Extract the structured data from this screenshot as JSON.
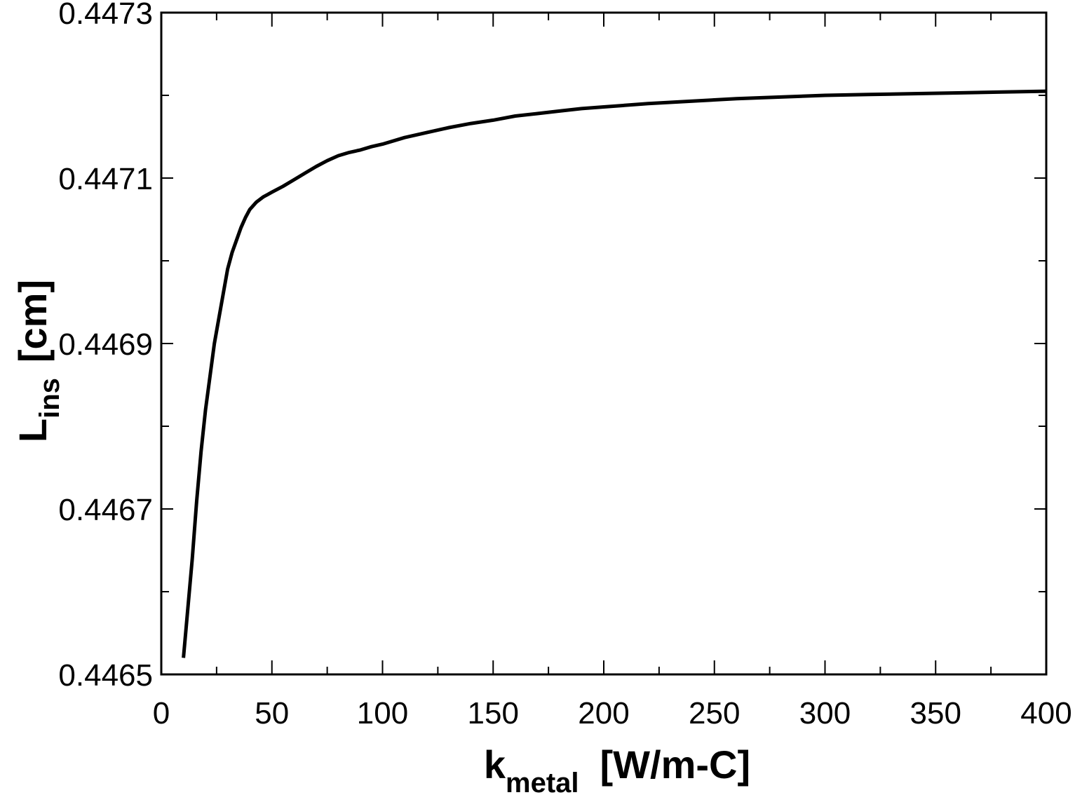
{
  "chart_data": {
    "type": "line",
    "title": "",
    "xlabel": {
      "main": "k",
      "sub": "metal",
      "unit": "[W/m-C]"
    },
    "ylabel": {
      "main": "L",
      "sub": "ins",
      "unit": "[cm]"
    },
    "xlim": [
      0,
      400
    ],
    "ylim": [
      0.4465,
      0.4473
    ],
    "x_ticks": [
      0,
      50,
      100,
      150,
      200,
      250,
      300,
      350,
      400
    ],
    "x_tick_labels": [
      "0",
      "50",
      "100",
      "150",
      "200",
      "250",
      "300",
      "350",
      "400"
    ],
    "y_ticks": [
      0.4465,
      0.4467,
      0.4469,
      0.4471,
      0.4473
    ],
    "y_tick_labels": [
      "0.4465",
      "0.4467",
      "0.4469",
      "0.4471",
      "0.4473"
    ],
    "x_minor_step": 25,
    "y_minor_step": 0.0001,
    "grid": false,
    "legend": "none",
    "line_color": "#000000",
    "series": [
      {
        "x": [
          10,
          12,
          14,
          16,
          18,
          20,
          22,
          24,
          26,
          28,
          30,
          32,
          34,
          36,
          38,
          40,
          43,
          46,
          50,
          55,
          60,
          65,
          70,
          75,
          80,
          85,
          90,
          95,
          100,
          110,
          120,
          130,
          140,
          150,
          160,
          170,
          180,
          190,
          200,
          220,
          240,
          260,
          280,
          300,
          320,
          340,
          360,
          380,
          400
        ],
        "values": [
          0.44652,
          0.44658,
          0.44664,
          0.44671,
          0.44677,
          0.44682,
          0.44686,
          0.4469,
          0.44693,
          0.44696,
          0.44699,
          0.44701,
          0.447025,
          0.44704,
          0.447052,
          0.447062,
          0.447071,
          0.447077,
          0.447083,
          0.44709,
          0.447098,
          0.447106,
          0.447114,
          0.447121,
          0.447127,
          0.447131,
          0.447134,
          0.447138,
          0.447141,
          0.447149,
          0.447155,
          0.447161,
          0.447166,
          0.44717,
          0.447175,
          0.447178,
          0.447181,
          0.447184,
          0.447186,
          0.44719,
          0.447193,
          0.447196,
          0.447198,
          0.4472,
          0.447201,
          0.447202,
          0.447203,
          0.447204,
          0.447205
        ]
      }
    ]
  }
}
